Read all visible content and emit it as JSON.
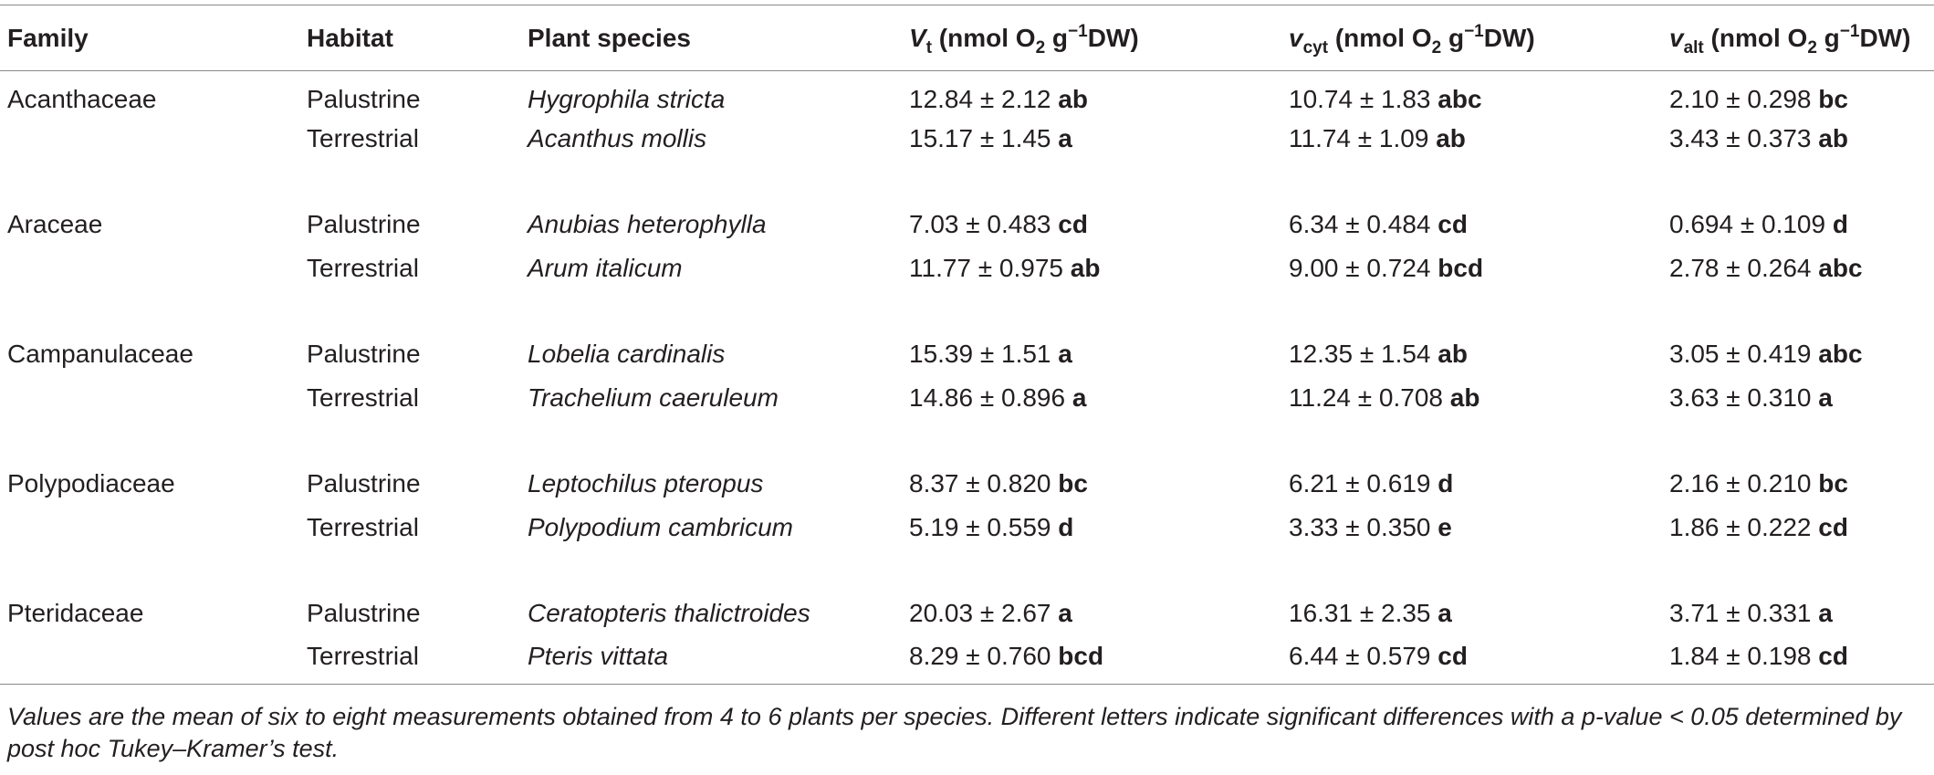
{
  "headers": {
    "family": "Family",
    "habitat": "Habitat",
    "species": "Plant species",
    "vt": {
      "sym": "V",
      "sub": "t",
      "pre": " (nmol O",
      "sub2": "2",
      "mid": " g",
      "sup": "−1",
      "post": "DW)"
    },
    "vcyt": {
      "sym": "v",
      "sub": "cyt",
      "pre": " (nmol O",
      "sub2": "2",
      "mid": " g",
      "sup": "−1",
      "post": "DW)"
    },
    "valt": {
      "sym": "v",
      "sub": "alt",
      "pre": " (nmol O",
      "sub2": "2",
      "mid": " g",
      "sup": "−1",
      "post": "DW)"
    }
  },
  "rows": [
    {
      "family": "Acanthaceae",
      "habitat": "Palustrine",
      "species": "Hygrophila stricta",
      "vt": "12.84 ± 2.12",
      "vt_l": "ab",
      "vcyt": "10.74 ± 1.83",
      "vcyt_l": "abc",
      "valt": "2.10 ± 0.298",
      "valt_l": "bc"
    },
    {
      "family": "",
      "habitat": "Terrestrial",
      "species": "Acanthus mollis",
      "vt": "15.17 ± 1.45",
      "vt_l": "a",
      "vcyt": "11.74 ± 1.09",
      "vcyt_l": "ab",
      "valt": "3.43 ± 0.373",
      "valt_l": "ab"
    },
    {
      "family": "Araceae",
      "habitat": "Palustrine",
      "species": "Anubias heterophylla",
      "vt": "7.03 ± 0.483",
      "vt_l": "cd",
      "vcyt": "6.34 ± 0.484",
      "vcyt_l": "cd",
      "valt": "0.694 ± 0.109",
      "valt_l": "d"
    },
    {
      "family": "",
      "habitat": "Terrestrial",
      "species": "Arum italicum",
      "vt": "11.77 ± 0.975",
      "vt_l": "ab",
      "vcyt": "9.00 ± 0.724",
      "vcyt_l": "bcd",
      "valt": "2.78 ± 0.264",
      "valt_l": "abc"
    },
    {
      "family": "Campanulaceae",
      "habitat": "Palustrine",
      "species": "Lobelia cardinalis",
      "vt": "15.39 ± 1.51",
      "vt_l": "a",
      "vcyt": "12.35 ± 1.54",
      "vcyt_l": "ab",
      "valt": "3.05 ± 0.419",
      "valt_l": "abc"
    },
    {
      "family": "",
      "habitat": "Terrestrial",
      "species": "Trachelium caeruleum",
      "vt": "14.86 ± 0.896",
      "vt_l": "a",
      "vcyt": "11.24 ± 0.708",
      "vcyt_l": "ab",
      "valt": "3.63 ± 0.310",
      "valt_l": "a"
    },
    {
      "family": "Polypodiaceae",
      "habitat": "Palustrine",
      "species": "Leptochilus pteropus",
      "vt": "8.37 ± 0.820",
      "vt_l": "bc",
      "vcyt": "6.21 ± 0.619",
      "vcyt_l": "d",
      "valt": "2.16 ± 0.210",
      "valt_l": "bc"
    },
    {
      "family": "",
      "habitat": "Terrestrial",
      "species": "Polypodium cambricum",
      "vt": "5.19 ± 0.559",
      "vt_l": "d",
      "vcyt": "3.33 ± 0.350",
      "vcyt_l": "e",
      "valt": "1.86 ± 0.222",
      "valt_l": "cd"
    },
    {
      "family": "Pteridaceae",
      "habitat": "Palustrine",
      "species": "Ceratopteris thalictroides",
      "vt": "20.03 ± 2.67",
      "vt_l": "a",
      "vcyt": "16.31 ± 2.35",
      "vcyt_l": "a",
      "valt": "3.71 ± 0.331",
      "valt_l": "a"
    },
    {
      "family": "",
      "habitat": "Terrestrial",
      "species": "Pteris vittata",
      "vt": "8.29 ± 0.760",
      "vt_l": "bcd",
      "vcyt": "6.44 ± 0.579",
      "vcyt_l": "cd",
      "valt": "1.84 ± 0.198",
      "valt_l": "cd"
    }
  ],
  "footnote": "Values are the mean of six to eight measurements obtained from 4 to 6 plants per species. Different letters indicate significant differences with a p-value < 0.05 determined by post hoc Tukey–Kramer’s test."
}
